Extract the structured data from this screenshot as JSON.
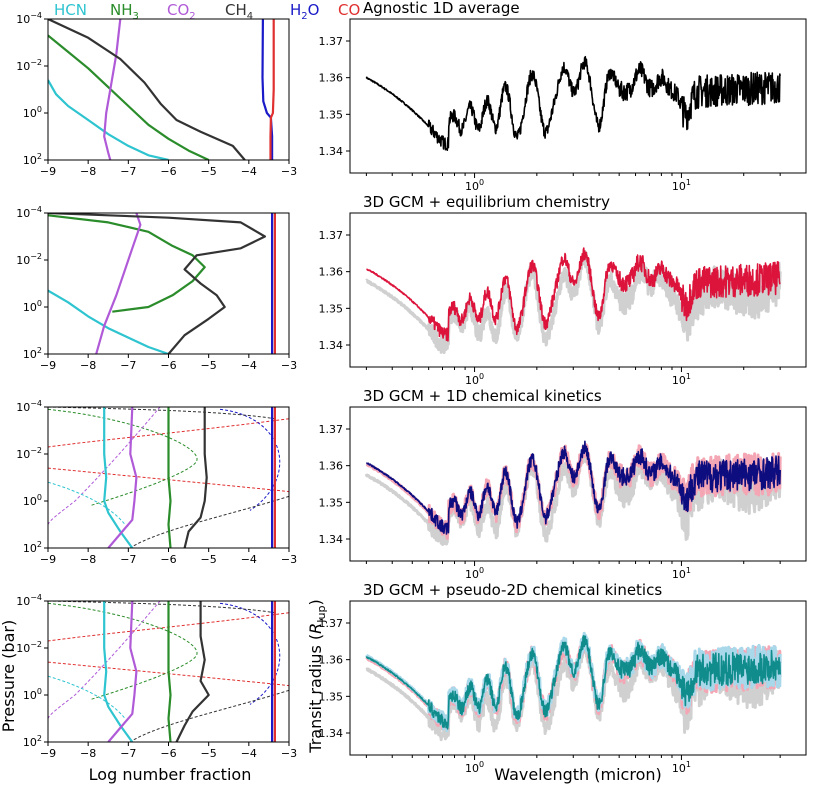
{
  "figure": {
    "ylabel_left": "Pressure (bar)",
    "ylabel_right_prefix": "Transit radius (",
    "ylabel_right_var": "R",
    "ylabel_right_sub": "Jup",
    "ylabel_right_suffix": ")",
    "xlabel_left": "Log number fraction",
    "xlabel_right": "Wavelength (micron)"
  },
  "legend": [
    {
      "name": "HCN",
      "base": "HCN",
      "sub": "",
      "color": "#2ec4d0"
    },
    {
      "name": "NH3",
      "base": "NH",
      "sub": "3",
      "color": "#2a8c2a"
    },
    {
      "name": "CO2",
      "base": "CO",
      "sub": "2",
      "color": "#b05ad8"
    },
    {
      "name": "CH4",
      "base": "CH",
      "sub": "4",
      "color": "#333333"
    },
    {
      "name": "H2O",
      "base": "H",
      "sub": "2",
      "tail": "O",
      "color": "#1a1ac8"
    },
    {
      "name": "CO",
      "base": "CO",
      "sub": "",
      "color": "#e03030"
    }
  ],
  "chart_data": [
    {
      "type": "line",
      "panel": "profiles-1",
      "xlim": [
        -9,
        -3
      ],
      "xticks": [
        "-9",
        "-8",
        "-7",
        "-6",
        "-5",
        "-4",
        "-3"
      ],
      "yticks": [
        "10^-4",
        "10^-2",
        "10^0",
        "10^2"
      ],
      "series": [
        {
          "name": "HCN",
          "style": "solid",
          "x": [
            -9,
            -8.8,
            -8.5,
            -8,
            -7.5,
            -7,
            -6.5,
            -6
          ],
          "y": [
            -1.4,
            -0.8,
            -0.3,
            0.3,
            0.9,
            1.4,
            1.8,
            2
          ]
        },
        {
          "name": "NH3",
          "style": "solid",
          "x": [
            -9,
            -8.5,
            -8,
            -7.5,
            -7,
            -6.5,
            -6,
            -5.5,
            -5
          ],
          "y": [
            -3.3,
            -2.6,
            -1.9,
            -1.1,
            -0.3,
            0.5,
            1.1,
            1.6,
            2
          ]
        },
        {
          "name": "CO2",
          "style": "solid",
          "x": [
            -7.2,
            -7.3,
            -7.45,
            -7.55,
            -7.6,
            -7.5,
            -7.45
          ],
          "y": [
            -4,
            -2.5,
            -1,
            0,
            1,
            1.7,
            2
          ]
        },
        {
          "name": "CH4",
          "style": "solid",
          "x": [
            -9,
            -8,
            -7.2,
            -6.6,
            -6.2,
            -5.8,
            -5.2,
            -4.4,
            -4.1
          ],
          "y": [
            -4,
            -3.2,
            -2.3,
            -1.3,
            -0.4,
            0.3,
            0.8,
            1.4,
            2
          ]
        },
        {
          "name": "H2O",
          "style": "solid",
          "x": [
            -3.65,
            -3.66,
            -3.64,
            -3.55,
            -3.45,
            -3.42,
            -3.42
          ],
          "y": [
            -4,
            -1.5,
            -0.5,
            0,
            0.2,
            1,
            2
          ]
        },
        {
          "name": "CO",
          "style": "solid",
          "x": [
            -3.38,
            -3.38,
            -3.4,
            -3.45,
            -3.46,
            -3.46
          ],
          "y": [
            -4,
            -1,
            0,
            0.2,
            1,
            2
          ]
        }
      ]
    },
    {
      "type": "line",
      "panel": "profiles-2",
      "xlim": [
        -9,
        -3
      ],
      "xticks": [
        "-9",
        "-8",
        "-7",
        "-6",
        "-5",
        "-4",
        "-3"
      ],
      "yticks": [
        "10^-4",
        "10^-2",
        "10^0",
        "10^2"
      ],
      "series": [
        {
          "name": "HCN",
          "style": "solid",
          "x": [
            -9,
            -8.5,
            -8,
            -7.5,
            -7,
            -6.5,
            -6
          ],
          "y": [
            -0.7,
            -0.2,
            0.4,
            0.9,
            1.3,
            1.7,
            2
          ]
        },
        {
          "name": "NH3",
          "style": "solid",
          "x": [
            -9,
            -7.5,
            -6.5,
            -5.9,
            -5.4,
            -5.1,
            -5.4,
            -5.9,
            -6.5,
            -7.4
          ],
          "y": [
            -3.9,
            -3.6,
            -3.2,
            -2.6,
            -2.2,
            -1.7,
            -1.1,
            -0.5,
            0,
            0.2
          ]
        },
        {
          "name": "CO2",
          "style": "solid",
          "x": [
            -6.8,
            -6.7,
            -6.9,
            -7.1,
            -7.3,
            -7.6,
            -7.8
          ],
          "y": [
            -4,
            -3.5,
            -2.5,
            -1.5,
            -0.5,
            0.8,
            2
          ]
        },
        {
          "name": "CH4",
          "style": "solid",
          "x": [
            -9,
            -7.5,
            -6,
            -4.2,
            -3.6,
            -4.2,
            -5.3,
            -5.6,
            -5.2,
            -4.8,
            -4.6,
            -5,
            -5.6,
            -6
          ],
          "y": [
            -4,
            -3.9,
            -3.8,
            -3.6,
            -3,
            -2.5,
            -2.2,
            -1.6,
            -1,
            -0.5,
            0,
            0.5,
            1.2,
            2
          ]
        },
        {
          "name": "H2O",
          "style": "solid",
          "x": [
            -3.42,
            -3.42,
            -3.42
          ],
          "y": [
            -4,
            -1,
            2
          ]
        },
        {
          "name": "CO",
          "style": "solid",
          "x": [
            -3.35,
            -3.35,
            -3.35
          ],
          "y": [
            -4,
            -1,
            2
          ]
        }
      ]
    },
    {
      "type": "line",
      "panel": "profiles-3",
      "xlim": [
        -9,
        -3
      ],
      "xticks": [
        "-9",
        "-8",
        "-7",
        "-6",
        "-5",
        "-4",
        "-3"
      ],
      "yticks": [
        "10^-4",
        "10^-2",
        "10^0",
        "10^2"
      ],
      "series": [
        {
          "name": "HCN",
          "style": "solid",
          "x": [
            -7.6,
            -7.6,
            -7.55,
            -7.6,
            -7.5,
            -7.2,
            -6.9
          ],
          "y": [
            -4,
            -2,
            -1,
            0,
            0.5,
            1.3,
            2
          ]
        },
        {
          "name": "NH3",
          "style": "solid",
          "x": [
            -6,
            -6,
            -6,
            -5.95,
            -6,
            -5.95
          ],
          "y": [
            -4,
            -2,
            -1,
            0,
            1,
            2
          ]
        },
        {
          "name": "CO2",
          "style": "solid",
          "x": [
            -6.9,
            -6.95,
            -6.8,
            -6.85,
            -6.9,
            -7.2,
            -7.5
          ],
          "y": [
            -4,
            -2,
            -1,
            0,
            0.8,
            1.4,
            2
          ]
        },
        {
          "name": "CH4",
          "style": "solid",
          "x": [
            -5.1,
            -5.1,
            -5.05,
            -5.1,
            -5.2,
            -5.5,
            -5.6
          ],
          "y": [
            -4,
            -2,
            -1,
            0,
            0.7,
            1.3,
            2
          ]
        },
        {
          "name": "H2O",
          "style": "solid",
          "x": [
            -3.42,
            -3.42,
            -3.42
          ],
          "y": [
            -4,
            -1,
            2
          ]
        },
        {
          "name": "CO",
          "style": "solid",
          "x": [
            -3.35,
            -3.35,
            -3.35
          ],
          "y": [
            -4,
            -1,
            2
          ]
        }
      ]
    },
    {
      "type": "line",
      "panel": "profiles-4",
      "xlim": [
        -9,
        -3
      ],
      "xticks": [
        "-9",
        "-8",
        "-7",
        "-6",
        "-5",
        "-4",
        "-3"
      ],
      "yticks": [
        "10^-4",
        "10^-2",
        "10^0",
        "10^2"
      ],
      "series": [
        {
          "name": "HCN",
          "style": "solid",
          "x": [
            -7.6,
            -7.6,
            -7.55,
            -7.6,
            -7.5,
            -7.2,
            -6.9
          ],
          "y": [
            -4,
            -2,
            -1,
            0,
            0.5,
            1.3,
            2
          ]
        },
        {
          "name": "NH3",
          "style": "solid",
          "x": [
            -6,
            -6,
            -6,
            -5.95,
            -6,
            -5.95
          ],
          "y": [
            -4,
            -2,
            -1,
            0,
            1,
            2
          ]
        },
        {
          "name": "CO2",
          "style": "solid",
          "x": [
            -6.9,
            -6.95,
            -6.8,
            -6.85,
            -6.9,
            -7.2,
            -7.5
          ],
          "y": [
            -4,
            -2,
            -1,
            0,
            0.8,
            1.4,
            2
          ]
        },
        {
          "name": "CH4",
          "style": "solid",
          "x": [
            -5.2,
            -5.2,
            -5.1,
            -5.2,
            -5,
            -5.4,
            -5.6,
            -5.8
          ],
          "y": [
            -4,
            -2.5,
            -1.5,
            -0.6,
            0,
            0.7,
            1.3,
            2
          ]
        },
        {
          "name": "H2O",
          "style": "solid",
          "x": [
            -3.42,
            -3.42,
            -3.42
          ],
          "y": [
            -4,
            -1,
            2
          ]
        },
        {
          "name": "CO",
          "style": "solid",
          "x": [
            -3.35,
            -3.35,
            -3.35
          ],
          "y": [
            -4,
            -1,
            2
          ]
        }
      ]
    },
    {
      "type": "line",
      "panel": "spectrum-1",
      "title": "Agnostic 1D average",
      "xscale": "log",
      "xlim": [
        0.25,
        40
      ],
      "ylim": [
        1.334,
        1.376
      ],
      "xticks": [
        "10^0",
        "10^1"
      ],
      "yticks": [
        "1.34",
        "1.35",
        "1.36",
        "1.37"
      ],
      "series": [
        {
          "name": "Agnostic 1D average",
          "color": "#000000"
        }
      ],
      "reference_series": []
    },
    {
      "type": "line",
      "panel": "spectrum-2",
      "title": "3D GCM + equilibrium chemistry",
      "xscale": "log",
      "xlim": [
        0.25,
        40
      ],
      "ylim": [
        1.334,
        1.376
      ],
      "xticks": [
        "10^0",
        "10^1"
      ],
      "yticks": [
        "1.34",
        "1.35",
        "1.36",
        "1.37"
      ],
      "series": [
        {
          "name": "3D GCM + equilibrium chemistry",
          "color": "#dc143c"
        }
      ],
      "reference_series": [
        {
          "name": "grey reference",
          "color": "#d0d0d0"
        }
      ]
    },
    {
      "type": "line",
      "panel": "spectrum-3",
      "title": "3D GCM + 1D chemical kinetics",
      "xscale": "log",
      "xlim": [
        0.25,
        40
      ],
      "ylim": [
        1.334,
        1.376
      ],
      "xticks": [
        "10^0",
        "10^1"
      ],
      "yticks": [
        "1.34",
        "1.35",
        "1.36",
        "1.37"
      ],
      "series": [
        {
          "name": "3D GCM + 1D chemical kinetics",
          "color": "#0d0d80"
        }
      ],
      "reference_series": [
        {
          "name": "grey reference",
          "color": "#d0d0d0"
        },
        {
          "name": "pink reference",
          "color": "#f4a6b4"
        }
      ]
    },
    {
      "type": "line",
      "panel": "spectrum-4",
      "title": "3D GCM + pseudo-2D chemical kinetics",
      "xscale": "log",
      "xlim": [
        0.25,
        40
      ],
      "ylim": [
        1.334,
        1.376
      ],
      "xticks": [
        "10^0",
        "10^1"
      ],
      "yticks": [
        "1.34",
        "1.35",
        "1.36",
        "1.37"
      ],
      "series": [
        {
          "name": "3D GCM + pseudo-2D chemical kinetics",
          "color": "#108c8c"
        }
      ],
      "reference_series": [
        {
          "name": "grey reference",
          "color": "#d0d0d0"
        },
        {
          "name": "pink reference",
          "color": "#f4a6b4"
        },
        {
          "name": "light blue reference",
          "color": "#a8d8ea"
        }
      ]
    }
  ]
}
